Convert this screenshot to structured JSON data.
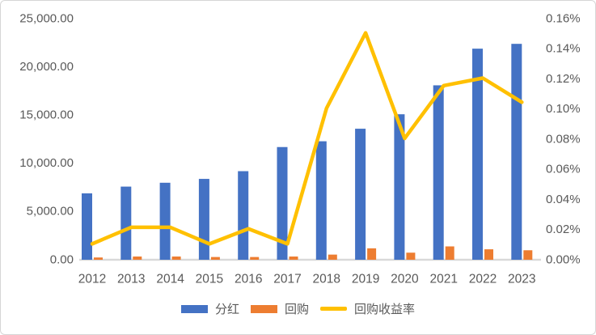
{
  "chart_data": {
    "type": "bar",
    "combo": "dual-axis bar + line",
    "title": "",
    "categories": [
      "2012",
      "2013",
      "2014",
      "2015",
      "2016",
      "2017",
      "2018",
      "2019",
      "2020",
      "2021",
      "2022",
      "2023"
    ],
    "series": [
      {
        "name": "分红",
        "type": "bar",
        "axis": "left",
        "color": "#4472C4",
        "values": [
          6800,
          7500,
          7900,
          8300,
          9100,
          11600,
          12200,
          13500,
          15000,
          18000,
          21800,
          22300
        ]
      },
      {
        "name": "回购",
        "type": "bar",
        "axis": "left",
        "color": "#ED7D31",
        "values": [
          150,
          250,
          250,
          200,
          200,
          250,
          450,
          1100,
          650,
          1300,
          1000,
          900
        ]
      },
      {
        "name": "回购收益率",
        "type": "line",
        "axis": "right",
        "color": "#FFC000",
        "values": [
          0.01,
          0.021,
          0.021,
          0.01,
          0.02,
          0.01,
          0.1,
          0.15,
          0.08,
          0.115,
          0.12,
          0.104
        ]
      }
    ],
    "left_axis": {
      "min": 0,
      "max": 25000,
      "tick_labels": [
        "0.00",
        "5,000.00",
        "10,000.00",
        "15,000.00",
        "20,000.00",
        "25,000.00"
      ]
    },
    "right_axis": {
      "min": 0,
      "max": 0.16,
      "tick_labels": [
        "0.00%",
        "0.02%",
        "0.04%",
        "0.06%",
        "0.08%",
        "0.10%",
        "0.12%",
        "0.14%",
        "0.16%"
      ]
    },
    "grid": false,
    "legend_position": "bottom",
    "colors": {
      "axis_text": "#595959",
      "axis_line": "#D9D9D9",
      "border": "#D6D6D6",
      "background": "#FFFFFF"
    }
  }
}
